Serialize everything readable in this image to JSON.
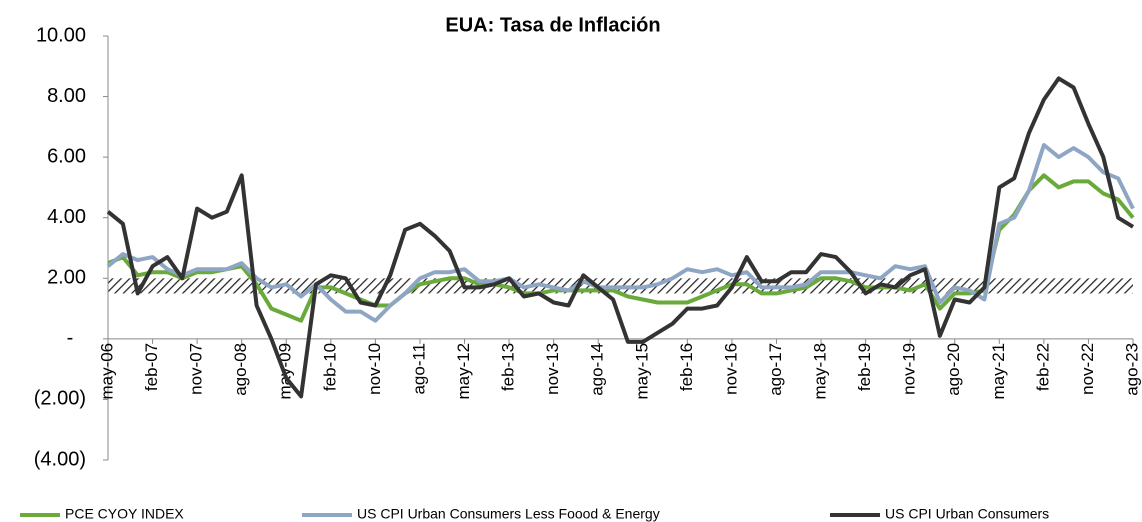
{
  "chart_data": {
    "type": "line",
    "title": "EUA:  Tasa de Inflación",
    "categories": [
      "may-06",
      null,
      null,
      "feb-07",
      null,
      null,
      "nov-07",
      null,
      null,
      "ago-08",
      null,
      null,
      "may-09",
      null,
      null,
      "feb-10",
      null,
      null,
      "nov-10",
      null,
      null,
      "ago-11",
      null,
      null,
      "may-12",
      null,
      null,
      "feb-13",
      null,
      null,
      "nov-13",
      null,
      null,
      "ago-14",
      null,
      null,
      "may-15",
      null,
      null,
      "feb-16",
      null,
      null,
      "nov-16",
      null,
      null,
      "ago-17",
      null,
      null,
      "may-18",
      null,
      null,
      "feb-19",
      null,
      null,
      "nov-19",
      null,
      null,
      "ago-20",
      null,
      null,
      "may-21",
      null,
      null,
      "feb-22",
      null,
      null,
      "nov-22",
      null,
      null,
      "ago-23"
    ],
    "series": [
      {
        "name": "PCE CYOY INDEX",
        "color": "#6aaa3a",
        "values": [
          2.5,
          2.7,
          2.1,
          2.2,
          2.2,
          2.0,
          2.2,
          2.2,
          2.3,
          2.4,
          1.8,
          1.0,
          0.8,
          0.6,
          1.7,
          1.7,
          1.5,
          1.3,
          1.1,
          1.1,
          1.5,
          1.8,
          1.9,
          2.0,
          2.0,
          1.8,
          1.8,
          1.7,
          1.5,
          1.5,
          1.6,
          1.6,
          1.6,
          1.6,
          1.6,
          1.4,
          1.3,
          1.2,
          1.2,
          1.2,
          1.4,
          1.6,
          1.8,
          1.8,
          1.5,
          1.5,
          1.6,
          1.7,
          2.0,
          2.0,
          1.9,
          1.7,
          1.7,
          1.7,
          1.6,
          1.8,
          1.0,
          1.5,
          1.5,
          1.6,
          3.6,
          4.1,
          4.9,
          5.4,
          5.0,
          5.2,
          5.2,
          4.8,
          4.6,
          4.0
        ]
      },
      {
        "name": "US CPI Urban Consumers Less Foood & Energy",
        "color": "#8ea6c4",
        "values": [
          2.4,
          2.8,
          2.6,
          2.7,
          2.3,
          2.1,
          2.3,
          2.3,
          2.3,
          2.5,
          2.0,
          1.7,
          1.8,
          1.4,
          1.8,
          1.3,
          0.9,
          0.9,
          0.6,
          1.1,
          1.5,
          2.0,
          2.2,
          2.2,
          2.3,
          1.9,
          1.9,
          2.0,
          1.7,
          1.8,
          1.7,
          1.6,
          1.9,
          1.7,
          1.7,
          1.7,
          1.7,
          1.8,
          2.0,
          2.3,
          2.2,
          2.3,
          2.1,
          2.2,
          1.7,
          1.7,
          1.7,
          1.8,
          2.2,
          2.2,
          2.2,
          2.1,
          2.0,
          2.4,
          2.3,
          2.4,
          1.2,
          1.7,
          1.6,
          1.3,
          3.8,
          4.0,
          4.9,
          6.4,
          6.0,
          6.3,
          6.0,
          5.5,
          5.3,
          4.3
        ]
      },
      {
        "name": "US CPI Urban Consumers",
        "color": "#333333",
        "values": [
          4.2,
          3.8,
          1.5,
          2.4,
          2.7,
          2.0,
          4.3,
          4.0,
          4.2,
          5.4,
          1.1,
          0.0,
          -1.3,
          -1.9,
          1.8,
          2.1,
          2.0,
          1.2,
          1.1,
          2.1,
          3.6,
          3.8,
          3.4,
          2.9,
          1.7,
          1.7,
          1.8,
          2.0,
          1.4,
          1.5,
          1.2,
          1.1,
          2.1,
          1.7,
          1.3,
          -0.1,
          -0.1,
          0.2,
          0.5,
          1.0,
          1.0,
          1.1,
          1.7,
          2.7,
          1.9,
          1.9,
          2.2,
          2.2,
          2.8,
          2.7,
          2.2,
          1.5,
          1.8,
          1.7,
          2.1,
          2.3,
          0.1,
          1.3,
          1.2,
          1.7,
          5.0,
          5.3,
          6.8,
          7.9,
          8.6,
          8.3,
          7.1,
          6.0,
          4.0,
          3.7
        ]
      }
    ],
    "band": [
      1.5,
      2.0
    ],
    "ylim": [
      -4,
      10
    ],
    "yticks": [
      {
        "value": -4,
        "label": "(4.00)"
      },
      {
        "value": -2,
        "label": "(2.00)"
      },
      {
        "value": 0,
        "label": "-"
      },
      {
        "value": 2,
        "label": "2.00"
      },
      {
        "value": 4,
        "label": "4.00"
      },
      {
        "value": 6,
        "label": "6.00"
      },
      {
        "value": 8,
        "label": "8.00"
      },
      {
        "value": 10,
        "label": "10.00"
      }
    ],
    "legend": "bottom"
  }
}
